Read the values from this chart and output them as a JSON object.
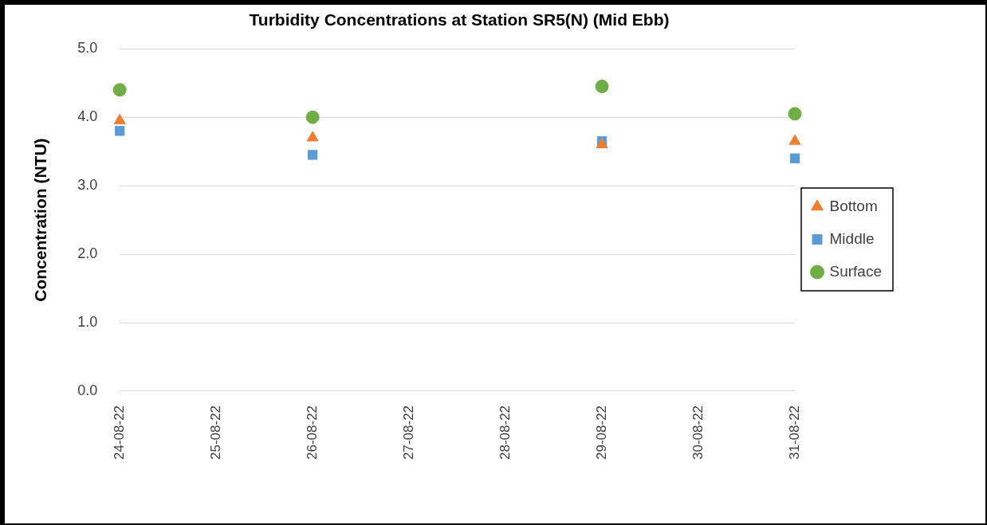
{
  "chart_data": {
    "type": "scatter",
    "title": "Turbidity Concentrations at Station SR5(N) (Mid Ebb)",
    "ylabel": "Concentration (NTU)",
    "categories": [
      "24-08-22",
      "25-08-22",
      "26-08-22",
      "27-08-22",
      "28-08-22",
      "29-08-22",
      "30-08-22",
      "31-08-22"
    ],
    "series": [
      {
        "name": "Bottom",
        "color": "#ed7d31",
        "marker": "triangle",
        "values": [
          3.95,
          null,
          3.7,
          null,
          null,
          3.6,
          null,
          3.65
        ]
      },
      {
        "name": "Middle",
        "color": "#5b9bd5",
        "marker": "square",
        "values": [
          3.8,
          null,
          3.45,
          null,
          null,
          3.65,
          null,
          3.4
        ]
      },
      {
        "name": "Surface",
        "color": "#70ad47",
        "marker": "circle",
        "values": [
          4.4,
          null,
          4.0,
          null,
          null,
          4.45,
          null,
          4.05
        ]
      }
    ],
    "ylim": [
      0,
      5
    ],
    "yticks": [
      {
        "value": 0,
        "label": "0.0"
      },
      {
        "value": 1,
        "label": "1.0"
      },
      {
        "value": 2,
        "label": "2.0"
      },
      {
        "value": 3,
        "label": "3.0"
      },
      {
        "value": 4,
        "label": "4.0"
      },
      {
        "value": 5,
        "label": "5.0"
      }
    ],
    "grid": "y",
    "legend": "right"
  }
}
